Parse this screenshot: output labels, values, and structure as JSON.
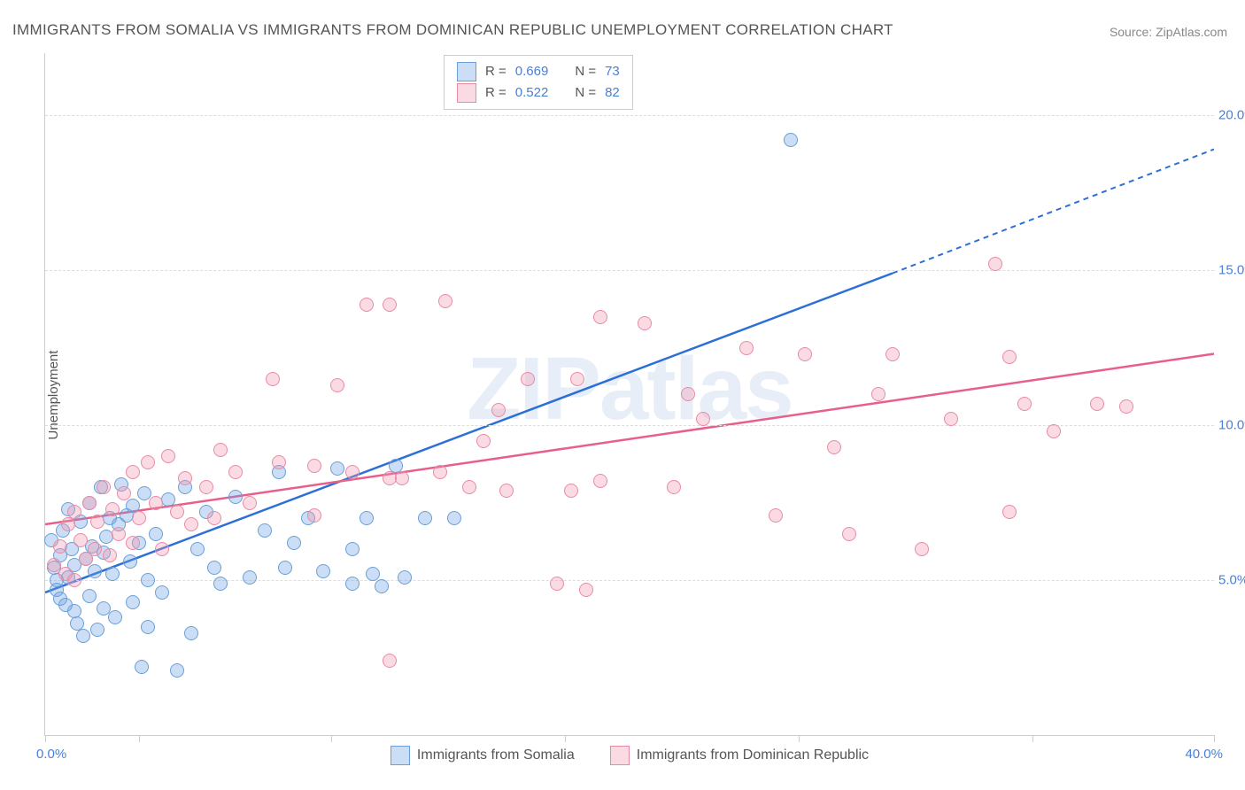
{
  "title": "IMMIGRANTS FROM SOMALIA VS IMMIGRANTS FROM DOMINICAN REPUBLIC UNEMPLOYMENT CORRELATION CHART",
  "source_label": "Source:",
  "source_value": "ZipAtlas.com",
  "watermark": "ZIPatlas",
  "ylabel": "Unemployment",
  "chart": {
    "type": "scatter",
    "xlim": [
      0,
      40
    ],
    "ylim": [
      0,
      22
    ],
    "xtick_percent_positions": [
      0,
      8.0,
      24.5,
      44.5,
      64.5,
      84.5,
      100
    ],
    "xtick_label_min": "0.0%",
    "xtick_label_max": "40.0%",
    "ytick_values": [
      5.0,
      10.0,
      15.0,
      20.0
    ],
    "ytick_labels": [
      "5.0%",
      "10.0%",
      "15.0%",
      "20.0%"
    ],
    "grid_color": "#dddddd",
    "background_color": "#ffffff",
    "axis_color": "#cccccc"
  },
  "series": [
    {
      "name": "Immigrants from Somalia",
      "color_fill": "rgba(110,160,225,0.35)",
      "color_stroke": "#6a9fd8",
      "line_color": "#2c6fd6",
      "R": "0.669",
      "N": "73",
      "regression": {
        "x1": 0,
        "y1": 4.6,
        "x2": 29,
        "y2": 14.9,
        "x3": 40,
        "y3": 18.9,
        "dashed_after": 29
      },
      "points": [
        [
          0.2,
          6.3
        ],
        [
          0.3,
          5.4
        ],
        [
          0.4,
          5.0
        ],
        [
          0.4,
          4.7
        ],
        [
          0.5,
          5.8
        ],
        [
          0.5,
          4.4
        ],
        [
          0.6,
          6.6
        ],
        [
          0.7,
          4.2
        ],
        [
          0.8,
          7.3
        ],
        [
          0.8,
          5.1
        ],
        [
          0.9,
          6.0
        ],
        [
          1.0,
          4.0
        ],
        [
          1.0,
          5.5
        ],
        [
          1.1,
          3.6
        ],
        [
          1.2,
          6.9
        ],
        [
          1.3,
          3.2
        ],
        [
          1.4,
          5.7
        ],
        [
          1.5,
          4.5
        ],
        [
          1.5,
          7.5
        ],
        [
          1.6,
          6.1
        ],
        [
          1.7,
          5.3
        ],
        [
          1.8,
          3.4
        ],
        [
          1.9,
          8.0
        ],
        [
          2.0,
          5.9
        ],
        [
          2.0,
          4.1
        ],
        [
          2.1,
          6.4
        ],
        [
          2.2,
          7.0
        ],
        [
          2.3,
          5.2
        ],
        [
          2.4,
          3.8
        ],
        [
          2.5,
          6.8
        ],
        [
          2.6,
          8.1
        ],
        [
          2.8,
          7.1
        ],
        [
          2.9,
          5.6
        ],
        [
          3.0,
          4.3
        ],
        [
          3.0,
          7.4
        ],
        [
          3.2,
          6.2
        ],
        [
          3.3,
          2.2
        ],
        [
          3.4,
          7.8
        ],
        [
          3.5,
          5.0
        ],
        [
          3.5,
          3.5
        ],
        [
          3.8,
          6.5
        ],
        [
          4.0,
          4.6
        ],
        [
          4.2,
          7.6
        ],
        [
          4.5,
          2.1
        ],
        [
          4.8,
          8.0
        ],
        [
          5.0,
          3.3
        ],
        [
          5.2,
          6.0
        ],
        [
          5.5,
          7.2
        ],
        [
          5.8,
          5.4
        ],
        [
          6.0,
          4.9
        ],
        [
          6.5,
          7.7
        ],
        [
          7.0,
          5.1
        ],
        [
          7.5,
          6.6
        ],
        [
          8.0,
          8.5
        ],
        [
          8.2,
          5.4
        ],
        [
          8.5,
          6.2
        ],
        [
          9.0,
          7.0
        ],
        [
          9.5,
          5.3
        ],
        [
          10.0,
          8.6
        ],
        [
          10.5,
          6.0
        ],
        [
          10.5,
          4.9
        ],
        [
          11.0,
          7.0
        ],
        [
          11.2,
          5.2
        ],
        [
          11.5,
          4.8
        ],
        [
          12.0,
          8.7
        ],
        [
          12.3,
          5.1
        ],
        [
          13.0,
          7.0
        ],
        [
          14.0,
          7.0
        ],
        [
          25.5,
          19.2
        ]
      ]
    },
    {
      "name": "Immigrants from Dominican Republic",
      "color_fill": "rgba(240,150,175,0.35)",
      "color_stroke": "#e88ba5",
      "line_color": "#e85f8a",
      "R": "0.522",
      "N": "82",
      "regression": {
        "x1": 0,
        "y1": 6.8,
        "x2": 40,
        "y2": 12.3
      },
      "points": [
        [
          0.3,
          5.5
        ],
        [
          0.5,
          6.1
        ],
        [
          0.7,
          5.2
        ],
        [
          0.8,
          6.8
        ],
        [
          1.0,
          5.0
        ],
        [
          1.0,
          7.2
        ],
        [
          1.2,
          6.3
        ],
        [
          1.4,
          5.7
        ],
        [
          1.5,
          7.5
        ],
        [
          1.7,
          6.0
        ],
        [
          1.8,
          6.9
        ],
        [
          2.0,
          8.0
        ],
        [
          2.2,
          5.8
        ],
        [
          2.3,
          7.3
        ],
        [
          2.5,
          6.5
        ],
        [
          2.7,
          7.8
        ],
        [
          3.0,
          8.5
        ],
        [
          3.0,
          6.2
        ],
        [
          3.2,
          7.0
        ],
        [
          3.5,
          8.8
        ],
        [
          3.8,
          7.5
        ],
        [
          4.0,
          6.0
        ],
        [
          4.2,
          9.0
        ],
        [
          4.5,
          7.2
        ],
        [
          4.8,
          8.3
        ],
        [
          5.0,
          6.8
        ],
        [
          5.5,
          8.0
        ],
        [
          5.8,
          7.0
        ],
        [
          6.0,
          9.2
        ],
        [
          6.5,
          8.5
        ],
        [
          7.0,
          7.5
        ],
        [
          7.8,
          11.5
        ],
        [
          8.0,
          8.8
        ],
        [
          9.2,
          8.7
        ],
        [
          9.2,
          7.1
        ],
        [
          10.0,
          11.3
        ],
        [
          10.5,
          8.5
        ],
        [
          11.0,
          13.9
        ],
        [
          11.8,
          13.9
        ],
        [
          11.8,
          2.4
        ],
        [
          11.8,
          8.3
        ],
        [
          12.2,
          8.3
        ],
        [
          13.5,
          8.5
        ],
        [
          13.7,
          14.0
        ],
        [
          14.5,
          8.0
        ],
        [
          15.0,
          9.5
        ],
        [
          15.5,
          10.5
        ],
        [
          15.8,
          7.9
        ],
        [
          16.5,
          11.5
        ],
        [
          17.5,
          4.9
        ],
        [
          18.0,
          7.9
        ],
        [
          18.2,
          11.5
        ],
        [
          18.5,
          4.7
        ],
        [
          19.0,
          8.2
        ],
        [
          19.0,
          13.5
        ],
        [
          20.5,
          13.3
        ],
        [
          21.5,
          8.0
        ],
        [
          22.0,
          11.0
        ],
        [
          22.5,
          10.2
        ],
        [
          24.0,
          12.5
        ],
        [
          25.0,
          7.1
        ],
        [
          26.0,
          12.3
        ],
        [
          27.0,
          9.3
        ],
        [
          27.5,
          6.5
        ],
        [
          28.5,
          11.0
        ],
        [
          29.0,
          12.3
        ],
        [
          30.0,
          6.0
        ],
        [
          31.0,
          10.2
        ],
        [
          32.5,
          15.2
        ],
        [
          33.0,
          7.2
        ],
        [
          33.0,
          12.2
        ],
        [
          33.5,
          10.7
        ],
        [
          34.5,
          9.8
        ],
        [
          36.0,
          10.7
        ],
        [
          37.0,
          10.6
        ]
      ]
    }
  ],
  "legend_labels": {
    "R": "R =",
    "N": "N ="
  }
}
